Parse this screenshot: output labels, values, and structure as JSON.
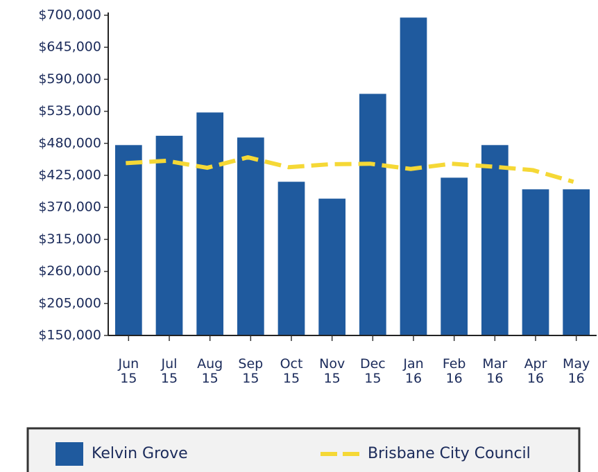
{
  "chart_data": {
    "type": "bar",
    "categories": [
      "Jun 15",
      "Jul 15",
      "Aug 15",
      "Sep 15",
      "Oct 15",
      "Nov 15",
      "Dec 15",
      "Jan 16",
      "Feb 16",
      "Mar 16",
      "Apr 16",
      "May 16"
    ],
    "series": [
      {
        "name": "Kelvin Grove",
        "type": "bar",
        "color": "#1f5a9e",
        "values": [
          477000,
          493000,
          533000,
          490000,
          414000,
          385000,
          565000,
          696000,
          421000,
          477000,
          401000,
          401000
        ]
      },
      {
        "name": "Brisbane City Council",
        "type": "line",
        "color": "#f5d836",
        "dashed": true,
        "values": [
          446000,
          450000,
          438000,
          456000,
          439000,
          444000,
          445000,
          436000,
          445000,
          440000,
          434000,
          414000
        ]
      }
    ],
    "ylim": [
      150000,
      700000
    ],
    "yticks": [
      {
        "value": 150000,
        "label": "$150,000"
      },
      {
        "value": 205000,
        "label": "$205,000"
      },
      {
        "value": 260000,
        "label": "$260,000"
      },
      {
        "value": 315000,
        "label": "$315,000"
      },
      {
        "value": 370000,
        "label": "$370,000"
      },
      {
        "value": 425000,
        "label": "$425,000"
      },
      {
        "value": 480000,
        "label": "$480,000"
      },
      {
        "value": 535000,
        "label": "$535,000"
      },
      {
        "value": 590000,
        "label": "$590,000"
      },
      {
        "value": 645000,
        "label": "$645,000"
      },
      {
        "value": 700000,
        "label": "$700,000"
      }
    ],
    "grid": false,
    "legend": "bottom"
  }
}
